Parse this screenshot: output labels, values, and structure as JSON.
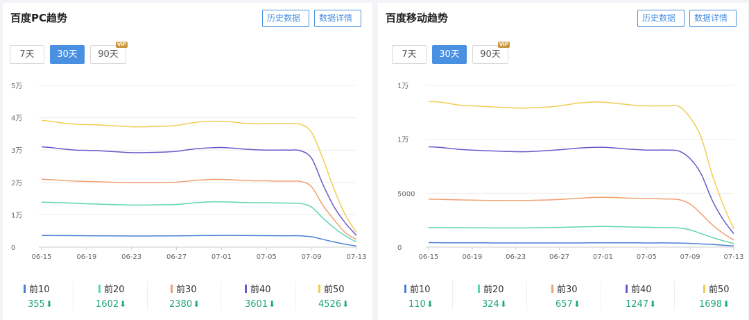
{
  "colors": {
    "top10": "#4a7fd6",
    "top20": "#5fd3b5",
    "top30": "#f0a070",
    "top40": "#6659c8",
    "top50": "#f2cc52",
    "down": "#1fa67a",
    "accent": "#4a90e2"
  },
  "buttons": {
    "history": "历史数据",
    "detail": "数据详情"
  },
  "ranges": {
    "r7": "7天",
    "r30": "30天",
    "r90": "90天",
    "vip": "VIP"
  },
  "legend_labels": [
    "前10",
    "前20",
    "前30",
    "前40",
    "前50"
  ],
  "pc": {
    "title": "百度PC趋势",
    "legend_values": [
      "355",
      "1602",
      "2380",
      "3601",
      "4526"
    ]
  },
  "mobile": {
    "title": "百度移动趋势",
    "legend_values": [
      "110",
      "324",
      "657",
      "1247",
      "1698"
    ]
  },
  "chart_data": [
    {
      "type": "line",
      "x": [
        "06-15",
        "06-16",
        "06-17",
        "06-18",
        "06-19",
        "06-20",
        "06-21",
        "06-22",
        "06-23",
        "06-24",
        "06-25",
        "06-26",
        "06-27",
        "06-28",
        "06-29",
        "06-30",
        "07-01",
        "07-02",
        "07-03",
        "07-04",
        "07-05",
        "07-06",
        "07-07",
        "07-08",
        "07-09",
        "07-10",
        "07-11",
        "07-12",
        "07-13"
      ],
      "x_tick_labels": [
        "06-15",
        "06-19",
        "06-23",
        "06-27",
        "07-01",
        "07-05",
        "07-09",
        "07-13"
      ],
      "y_tick_labels": [
        "0",
        "1万",
        "2万",
        "3万",
        "4万",
        "5万"
      ],
      "ylim": [
        0,
        50000
      ],
      "grid": true,
      "series": [
        {
          "name": "前10",
          "values": [
            3600,
            3580,
            3560,
            3540,
            3520,
            3500,
            3480,
            3460,
            3440,
            3440,
            3450,
            3460,
            3480,
            3520,
            3560,
            3600,
            3620,
            3620,
            3600,
            3560,
            3540,
            3520,
            3520,
            3500,
            3200,
            2400,
            1600,
            900,
            355
          ]
        },
        {
          "name": "前20",
          "values": [
            13900,
            13800,
            13700,
            13550,
            13400,
            13300,
            13200,
            13100,
            13000,
            13000,
            13050,
            13100,
            13200,
            13500,
            13800,
            14000,
            14000,
            13900,
            13800,
            13700,
            13700,
            13650,
            13600,
            13500,
            12400,
            9000,
            6000,
            3500,
            1602
          ]
        },
        {
          "name": "前30",
          "values": [
            21000,
            20800,
            20600,
            20400,
            20300,
            20200,
            20100,
            20000,
            19900,
            19900,
            19900,
            20000,
            20100,
            20400,
            20700,
            20900,
            20900,
            20800,
            20600,
            20500,
            20500,
            20400,
            20400,
            20300,
            18700,
            13000,
            8500,
            4500,
            2380
          ]
        },
        {
          "name": "前40",
          "values": [
            31000,
            30700,
            30300,
            30000,
            29900,
            29800,
            29600,
            29400,
            29200,
            29200,
            29300,
            29400,
            29600,
            30100,
            30500,
            30700,
            30800,
            30600,
            30300,
            30100,
            30000,
            30000,
            30000,
            29800,
            27500,
            19500,
            12500,
            7500,
            3601
          ]
        },
        {
          "name": "前50",
          "values": [
            39200,
            38800,
            38300,
            38000,
            37900,
            37800,
            37600,
            37400,
            37200,
            37200,
            37300,
            37400,
            37600,
            38200,
            38700,
            38900,
            38900,
            38700,
            38300,
            38100,
            38200,
            38200,
            38200,
            38000,
            35500,
            27500,
            18000,
            10000,
            4526
          ]
        }
      ]
    },
    {
      "type": "line",
      "x": [
        "06-15",
        "06-16",
        "06-17",
        "06-18",
        "06-19",
        "06-20",
        "06-21",
        "06-22",
        "06-23",
        "06-24",
        "06-25",
        "06-26",
        "06-27",
        "06-28",
        "06-29",
        "06-30",
        "07-01",
        "07-02",
        "07-03",
        "07-04",
        "07-05",
        "07-06",
        "07-07",
        "07-08",
        "07-09",
        "07-10",
        "07-11",
        "07-12",
        "07-13"
      ],
      "x_tick_labels": [
        "06-15",
        "06-19",
        "06-23",
        "06-27",
        "07-01",
        "07-05",
        "07-09",
        "07-13"
      ],
      "y_tick_labels": [
        "0",
        "5000",
        "1万",
        "1万"
      ],
      "ylim": [
        0,
        15000
      ],
      "grid": true,
      "series": [
        {
          "name": "前10",
          "values": [
            420,
            410,
            400,
            400,
            400,
            400,
            390,
            390,
            390,
            390,
            390,
            390,
            390,
            390,
            390,
            400,
            400,
            400,
            400,
            400,
            390,
            390,
            390,
            380,
            350,
            300,
            250,
            180,
            110
          ]
        },
        {
          "name": "前20",
          "values": [
            1820,
            1810,
            1800,
            1800,
            1790,
            1790,
            1780,
            1780,
            1780,
            1780,
            1800,
            1810,
            1830,
            1850,
            1880,
            1900,
            1920,
            1900,
            1880,
            1860,
            1840,
            1820,
            1800,
            1780,
            1600,
            1250,
            900,
            600,
            324
          ]
        },
        {
          "name": "前30",
          "values": [
            4450,
            4430,
            4400,
            4380,
            4360,
            4340,
            4330,
            4320,
            4320,
            4330,
            4350,
            4380,
            4420,
            4480,
            4540,
            4600,
            4620,
            4600,
            4560,
            4520,
            4500,
            4480,
            4460,
            4400,
            4000,
            3100,
            2100,
            1300,
            657
          ]
        },
        {
          "name": "前40",
          "values": [
            9300,
            9250,
            9150,
            9050,
            9000,
            8950,
            8920,
            8880,
            8850,
            8850,
            8900,
            8960,
            9030,
            9120,
            9200,
            9250,
            9260,
            9200,
            9120,
            9050,
            9000,
            9000,
            9000,
            8900,
            8200,
            6800,
            4400,
            2600,
            1247
          ]
        },
        {
          "name": "前50",
          "values": [
            13500,
            13450,
            13300,
            13150,
            13100,
            13050,
            13000,
            12950,
            12900,
            12900,
            12950,
            13000,
            13100,
            13250,
            13380,
            13450,
            13450,
            13350,
            13250,
            13150,
            13100,
            13100,
            13100,
            13050,
            12000,
            10200,
            6800,
            4000,
            1698
          ]
        }
      ]
    }
  ]
}
